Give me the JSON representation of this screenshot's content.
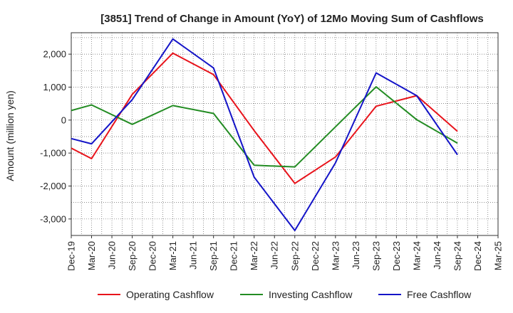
{
  "chart_data": {
    "type": "line",
    "title": "[3851]  Trend of Change in Amount (YoY) of 12Mo Moving Sum of Cashflows",
    "xlabel": "",
    "ylabel": "Amount (million yen)",
    "ylim": [
      -3500,
      2650
    ],
    "yticks": [
      2000,
      1000,
      0,
      -1000,
      -2000,
      -3000
    ],
    "ytick_labels": [
      "2,000",
      "1,000",
      "0",
      "-1,000",
      "-2,000",
      "-3,000"
    ],
    "categories": [
      "Dec-19",
      "Mar-20",
      "Jun-20",
      "Sep-20",
      "Dec-20",
      "Mar-21",
      "Jun-21",
      "Sep-21",
      "Dec-21",
      "Mar-22",
      "Jun-22",
      "Sep-22",
      "Dec-22",
      "Mar-23",
      "Jun-23",
      "Sep-23",
      "Dec-23",
      "Mar-24",
      "Jun-24",
      "Sep-24",
      "Dec-24",
      "Mar-25"
    ],
    "grid": true,
    "legend_position": "bottom",
    "series": [
      {
        "name": "Operating Cashflow",
        "color": "#e8131b",
        "values": [
          -850,
          -1170,
          null,
          780,
          null,
          2030,
          null,
          1380,
          null,
          -320,
          null,
          -1920,
          null,
          -1120,
          null,
          420,
          null,
          740,
          null,
          -340,
          null,
          null
        ]
      },
      {
        "name": "Investing Cashflow",
        "color": "#238c23",
        "values": [
          290,
          460,
          null,
          -130,
          null,
          440,
          null,
          200,
          null,
          -1370,
          null,
          -1420,
          null,
          null,
          null,
          1010,
          null,
          10,
          null,
          -700,
          null,
          null
        ]
      },
      {
        "name": "Free Cashflow",
        "color": "#1414c8",
        "values": [
          -560,
          -720,
          null,
          620,
          null,
          2460,
          null,
          1580,
          null,
          -1730,
          null,
          -3350,
          null,
          -1300,
          null,
          1430,
          null,
          740,
          null,
          -1050,
          null,
          null
        ]
      }
    ]
  }
}
